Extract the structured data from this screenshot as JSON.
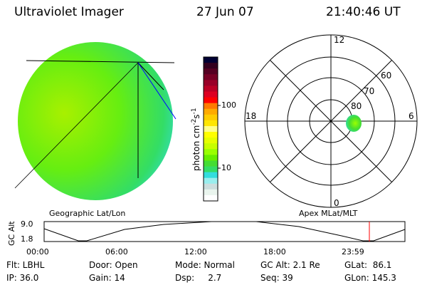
{
  "header": {
    "instrument": "Ultraviolet Imager",
    "date": "27 Jun 07",
    "time": "21:40:46 UT"
  },
  "colorbar": {
    "label": "photon cm",
    "label_sup1": "-2",
    "label_s": "s",
    "label_sup2": "-1",
    "ticks": [
      "100",
      "10"
    ],
    "colors": [
      "#000033",
      "#33001f",
      "#550022",
      "#770025",
      "#990028",
      "#bb0025",
      "#dd0022",
      "#ff0000",
      "#ff7a00",
      "#ffaa00",
      "#ffcc00",
      "#ffe600",
      "#ffff88",
      "#ffff00",
      "#e6ff00",
      "#c8ff00",
      "#99ff00",
      "#66ee00",
      "#44dd33",
      "#33dd66",
      "#33dddd",
      "#99eeee",
      "#ccdddd",
      "#eaf5ee",
      "#ffffff"
    ]
  },
  "polar": {
    "mlt_labels": {
      "top": "12",
      "right": "6",
      "bottom": "0",
      "left": "18"
    },
    "lat_labels": [
      "80",
      "70",
      "60"
    ]
  },
  "timeline": {
    "left_label": "Geographic Lat/Lon",
    "right_label": "Apex MLat/MLT",
    "y_axis_label": "GC Alt",
    "y_ticks": [
      "9.0",
      "1.8"
    ],
    "x_ticks": [
      "00:00",
      "06:00",
      "12:00",
      "18:00",
      "23:59"
    ],
    "marker_color": "#ff0000"
  },
  "info": {
    "row1": [
      "Flt: LBHL",
      "Door: Open",
      "Mode: Normal",
      "GC Alt: 2.1 Re",
      "GLat:  86.1"
    ],
    "row2": [
      "IP: 36.0",
      "Gain: 14",
      "Dsp:     2.7",
      "Seq: 39",
      "GLon: 145.3"
    ]
  },
  "colors": {
    "globe_main": "#66ee22",
    "globe_edge": "#33dddd",
    "footprint": "#0000ff"
  }
}
